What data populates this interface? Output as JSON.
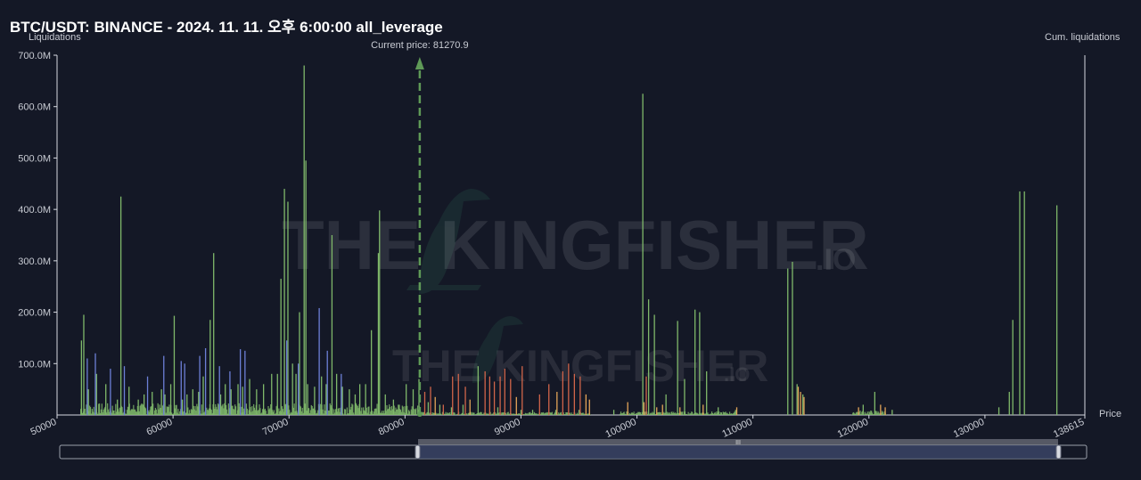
{
  "title": "BTC/USDT: BINANCE - 2024. 11. 11. 오후 6:00:00 all_leverage",
  "watermark": {
    "main": "THE KINGFISHER",
    "suffix": ".IO"
  },
  "slider": {
    "grip": "III"
  },
  "colors": {
    "background": "#141826",
    "green": "#7fb86a",
    "blue": "#6c7fd6",
    "red": "#d0654a",
    "orange": "#e2a458",
    "current_price_line": "#5f9a57",
    "axis": "#d6d9e0"
  },
  "chart_data": {
    "type": "bar",
    "ylabel": "Liquidations",
    "y2label": "Cum. liquidations",
    "xlabel": "Price",
    "ylim": [
      0,
      700000000
    ],
    "xlim": [
      50000,
      138615
    ],
    "y_ticks": [
      {
        "value": 100000000,
        "label": "100.0M"
      },
      {
        "value": 200000000,
        "label": "200.0M"
      },
      {
        "value": 300000000,
        "label": "300.0M"
      },
      {
        "value": 400000000,
        "label": "400.0M"
      },
      {
        "value": 500000000,
        "label": "500.0M"
      },
      {
        "value": 600000000,
        "label": "600.0M"
      },
      {
        "value": 700000000,
        "label": "700.0M"
      }
    ],
    "x_ticks": [
      {
        "value": 50000,
        "label": "50000"
      },
      {
        "value": 60000,
        "label": "60000"
      },
      {
        "value": 70000,
        "label": "70000"
      },
      {
        "value": 80000,
        "label": "80000"
      },
      {
        "value": 90000,
        "label": "90000"
      },
      {
        "value": 100000,
        "label": "100000"
      },
      {
        "value": 110000,
        "label": "110000"
      },
      {
        "value": 120000,
        "label": "120000"
      },
      {
        "value": 130000,
        "label": "130000"
      },
      {
        "value": 138615,
        "label": "138615"
      }
    ],
    "current_price": {
      "label": "Current price: 81270.9",
      "value": 81270.9
    },
    "series": [
      {
        "color": "green",
        "points": [
          [
            52100,
            145000000
          ],
          [
            52300,
            195000000
          ],
          [
            52700,
            50000000
          ],
          [
            53400,
            80000000
          ],
          [
            54200,
            60000000
          ],
          [
            55200,
            30000000
          ],
          [
            55500,
            425000000
          ],
          [
            56200,
            55000000
          ],
          [
            57000,
            30000000
          ],
          [
            57500,
            40000000
          ],
          [
            58200,
            45000000
          ],
          [
            59000,
            50000000
          ],
          [
            59300,
            40000000
          ],
          [
            59800,
            60000000
          ],
          [
            60100,
            193000000
          ],
          [
            60800,
            30000000
          ],
          [
            61200,
            40000000
          ],
          [
            61700,
            50000000
          ],
          [
            62200,
            45000000
          ],
          [
            62600,
            75000000
          ],
          [
            63200,
            185000000
          ],
          [
            63500,
            315000000
          ],
          [
            64100,
            40000000
          ],
          [
            64500,
            60000000
          ],
          [
            65000,
            50000000
          ],
          [
            65600,
            60000000
          ],
          [
            66000,
            55000000
          ],
          [
            66600,
            70000000
          ],
          [
            67200,
            50000000
          ],
          [
            67800,
            60000000
          ],
          [
            68500,
            80000000
          ],
          [
            69000,
            80000000
          ],
          [
            69300,
            265000000
          ],
          [
            69600,
            440000000
          ],
          [
            69900,
            415000000
          ],
          [
            70300,
            100000000
          ],
          [
            70600,
            80000000
          ],
          [
            70900,
            200000000
          ],
          [
            71300,
            680000000
          ],
          [
            71450,
            495000000
          ],
          [
            71600,
            60000000
          ],
          [
            72200,
            55000000
          ],
          [
            72800,
            75000000
          ],
          [
            73200,
            60000000
          ],
          [
            73700,
            350000000
          ],
          [
            74100,
            80000000
          ],
          [
            74600,
            55000000
          ],
          [
            75200,
            50000000
          ],
          [
            75700,
            40000000
          ],
          [
            76100,
            60000000
          ],
          [
            76600,
            60000000
          ],
          [
            77100,
            165000000
          ],
          [
            77700,
            315000000
          ],
          [
            77800,
            398000000
          ],
          [
            78300,
            40000000
          ],
          [
            79000,
            30000000
          ],
          [
            79500,
            20000000
          ],
          [
            80100,
            60000000
          ],
          [
            80700,
            50000000
          ],
          [
            81200,
            70000000
          ],
          [
            82000,
            25000000
          ],
          [
            83000,
            20000000
          ],
          [
            84000,
            15000000
          ],
          [
            85000,
            20000000
          ],
          [
            86300,
            95000000
          ],
          [
            88000,
            15000000
          ],
          [
            90000,
            10000000
          ],
          [
            91000,
            10000000
          ],
          [
            93000,
            10000000
          ],
          [
            95000,
            10000000
          ],
          [
            98000,
            10000000
          ],
          [
            100500,
            625000000
          ],
          [
            101000,
            225000000
          ],
          [
            101500,
            195000000
          ],
          [
            102500,
            40000000
          ],
          [
            103500,
            183000000
          ],
          [
            104100,
            70000000
          ],
          [
            105000,
            205000000
          ],
          [
            105400,
            200000000
          ],
          [
            106000,
            85000000
          ],
          [
            107000,
            15000000
          ],
          [
            108500,
            10000000
          ],
          [
            113000,
            285000000
          ],
          [
            113400,
            298000000
          ],
          [
            113800,
            60000000
          ],
          [
            114300,
            40000000
          ],
          [
            119500,
            20000000
          ],
          [
            120500,
            45000000
          ],
          [
            122000,
            10000000
          ],
          [
            131200,
            15000000
          ],
          [
            132100,
            45000000
          ],
          [
            132400,
            185000000
          ],
          [
            133000,
            435000000
          ],
          [
            133400,
            435000000
          ],
          [
            136200,
            408000000
          ]
        ]
      },
      {
        "color": "blue",
        "points": [
          [
            52600,
            110000000
          ],
          [
            53300,
            120000000
          ],
          [
            54600,
            90000000
          ],
          [
            55800,
            95000000
          ],
          [
            57800,
            75000000
          ],
          [
            59200,
            115000000
          ],
          [
            60700,
            105000000
          ],
          [
            61000,
            100000000
          ],
          [
            62300,
            115000000
          ],
          [
            62800,
            130000000
          ],
          [
            64000,
            95000000
          ],
          [
            64900,
            85000000
          ],
          [
            65800,
            128000000
          ],
          [
            66200,
            125000000
          ],
          [
            69800,
            145000000
          ],
          [
            70800,
            100000000
          ],
          [
            72600,
            208000000
          ],
          [
            73300,
            125000000
          ],
          [
            74500,
            80000000
          ]
        ]
      },
      {
        "color": "red",
        "points": [
          [
            81700,
            45000000
          ],
          [
            82200,
            55000000
          ],
          [
            83300,
            20000000
          ],
          [
            84100,
            75000000
          ],
          [
            84600,
            80000000
          ],
          [
            85200,
            55000000
          ],
          [
            86900,
            85000000
          ],
          [
            87300,
            75000000
          ],
          [
            87700,
            65000000
          ],
          [
            88200,
            75000000
          ],
          [
            88600,
            90000000
          ],
          [
            89100,
            70000000
          ],
          [
            90100,
            95000000
          ],
          [
            91600,
            40000000
          ],
          [
            92400,
            60000000
          ],
          [
            93600,
            85000000
          ],
          [
            94100,
            100000000
          ],
          [
            94600,
            80000000
          ],
          [
            95100,
            75000000
          ],
          [
            100800,
            75000000
          ]
        ]
      },
      {
        "color": "orange",
        "points": [
          [
            82600,
            35000000
          ],
          [
            85600,
            30000000
          ],
          [
            89600,
            35000000
          ],
          [
            93100,
            45000000
          ],
          [
            95600,
            40000000
          ],
          [
            95900,
            30000000
          ],
          [
            99200,
            25000000
          ],
          [
            100600,
            25000000
          ],
          [
            101700,
            15000000
          ],
          [
            102200,
            20000000
          ],
          [
            103700,
            15000000
          ],
          [
            105700,
            20000000
          ],
          [
            108600,
            15000000
          ],
          [
            113900,
            55000000
          ],
          [
            114100,
            45000000
          ],
          [
            114400,
            35000000
          ],
          [
            119100,
            15000000
          ],
          [
            121000,
            20000000
          ],
          [
            121400,
            15000000
          ]
        ]
      }
    ]
  }
}
